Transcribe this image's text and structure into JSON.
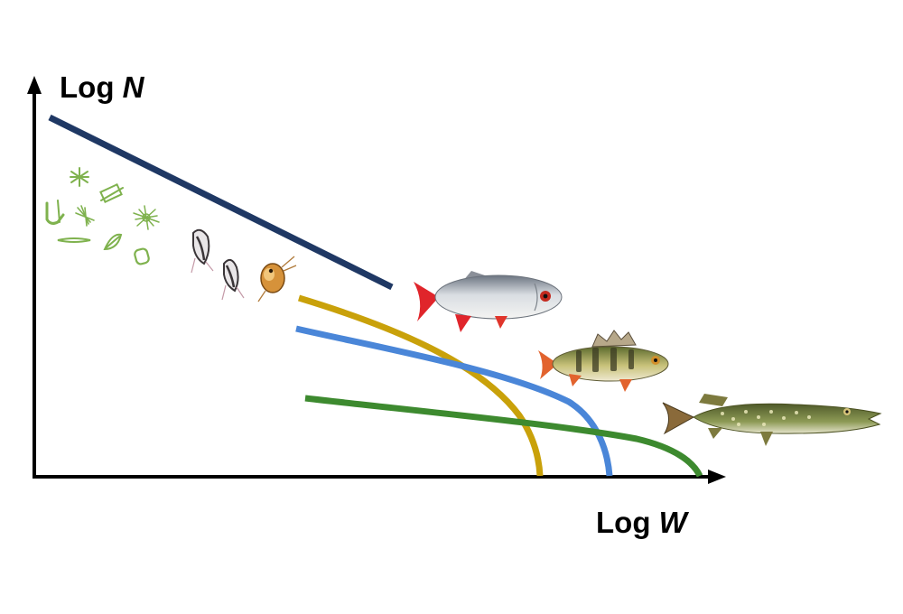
{
  "y_axis": {
    "label_prefix": "Log",
    "label_variable": "N"
  },
  "x_axis": {
    "label_prefix": "Log",
    "label_variable": "W"
  },
  "colors": {
    "axes": "#000000",
    "community_line": "#1f3864",
    "roach_curve": "#c9a10a",
    "perch_curve": "#4a86d8",
    "pike_curve": "#3d8a2f"
  },
  "organisms": [
    "phytoplankton",
    "zooplankton",
    "roach",
    "perch",
    "pike"
  ]
}
